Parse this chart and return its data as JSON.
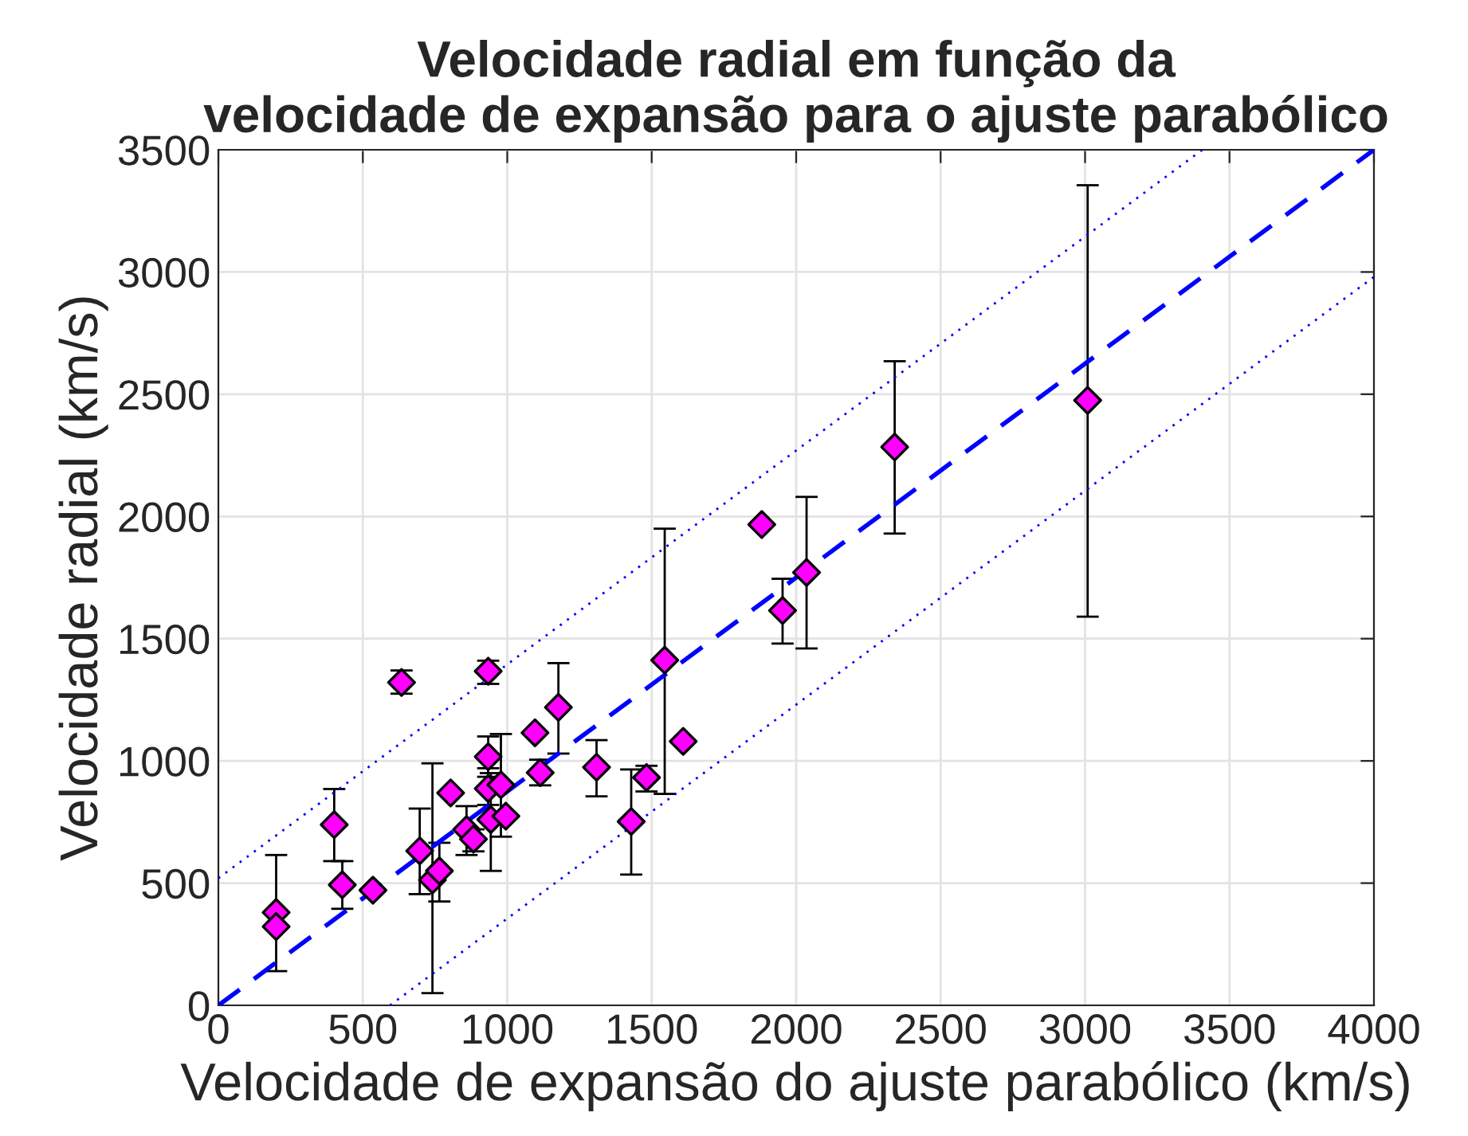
{
  "chart_data": {
    "type": "scatter",
    "title": "Velocidade radial em função da\nvelocidade de expansão para o ajuste parabólico",
    "xlabel": "Velocidade de expansão do ajuste parabólico (km/s)",
    "ylabel": "Velocidade radial (km/s)",
    "xlim": [
      0,
      4000
    ],
    "ylim": [
      0,
      3500
    ],
    "xticks": [
      0,
      500,
      1000,
      1500,
      2000,
      2500,
      3000,
      3500,
      4000
    ],
    "yticks": [
      0,
      500,
      1000,
      1500,
      2000,
      2500,
      3000,
      3500
    ],
    "grid": true,
    "legend": false,
    "series": [
      {
        "type": "scatter",
        "color": "#ff00ff",
        "marker": "diamond",
        "x": [
          200,
          200,
          401,
          429,
          535,
          634,
          697,
          741,
          765,
          804,
          859,
          883,
          934,
          934,
          934,
          943,
          978,
          995,
          1096,
          1114,
          1177,
          1309,
          1429,
          1482,
          1545,
          1609,
          1881,
          1953,
          2036,
          2341,
          3009
        ],
        "values": [
          380,
          322,
          739,
          493,
          471,
          1321,
          632,
          513,
          550,
          869,
          719,
          680,
          1017,
          1367,
          887,
          760,
          902,
          774,
          1115,
          952,
          1219,
          974,
          752,
          932,
          1412,
          1080,
          1967,
          1615,
          1771,
          2284,
          2475
        ],
        "errors": [
          null,
          [
            140,
            615
          ],
          [
            590,
            885
          ],
          [
            395,
            590
          ],
          null,
          [
            1275,
            1370
          ],
          [
            455,
            805
          ],
          [
            50,
            990
          ],
          [
            425,
            665
          ],
          null,
          [
            615,
            815
          ],
          [
            630,
            720
          ],
          [
            935,
            1100
          ],
          [
            1315,
            1410
          ],
          [
            820,
            970
          ],
          [
            550,
            950
          ],
          [
            690,
            1110
          ],
          null,
          null,
          [
            900,
            1005
          ],
          [
            1030,
            1400
          ],
          [
            855,
            1085
          ],
          [
            535,
            965
          ],
          [
            875,
            980
          ],
          [
            865,
            1950
          ],
          null,
          null,
          [
            1480,
            1745
          ],
          [
            1460,
            2080
          ],
          [
            1930,
            2635
          ],
          [
            1590,
            3355
          ]
        ]
      },
      {
        "type": "line",
        "color": "#0000ff",
        "line_style": "dashed",
        "x": [
          0,
          4000
        ],
        "values": [
          0,
          3500
        ]
      },
      {
        "type": "line",
        "color": "#0000ff",
        "line_style": "dotted",
        "x": [
          0,
          3406
        ],
        "values": [
          520,
          3500
        ]
      },
      {
        "type": "line",
        "color": "#0000ff",
        "line_style": "dotted",
        "x": [
          594,
          4000
        ],
        "values": [
          0,
          2980
        ]
      }
    ]
  }
}
